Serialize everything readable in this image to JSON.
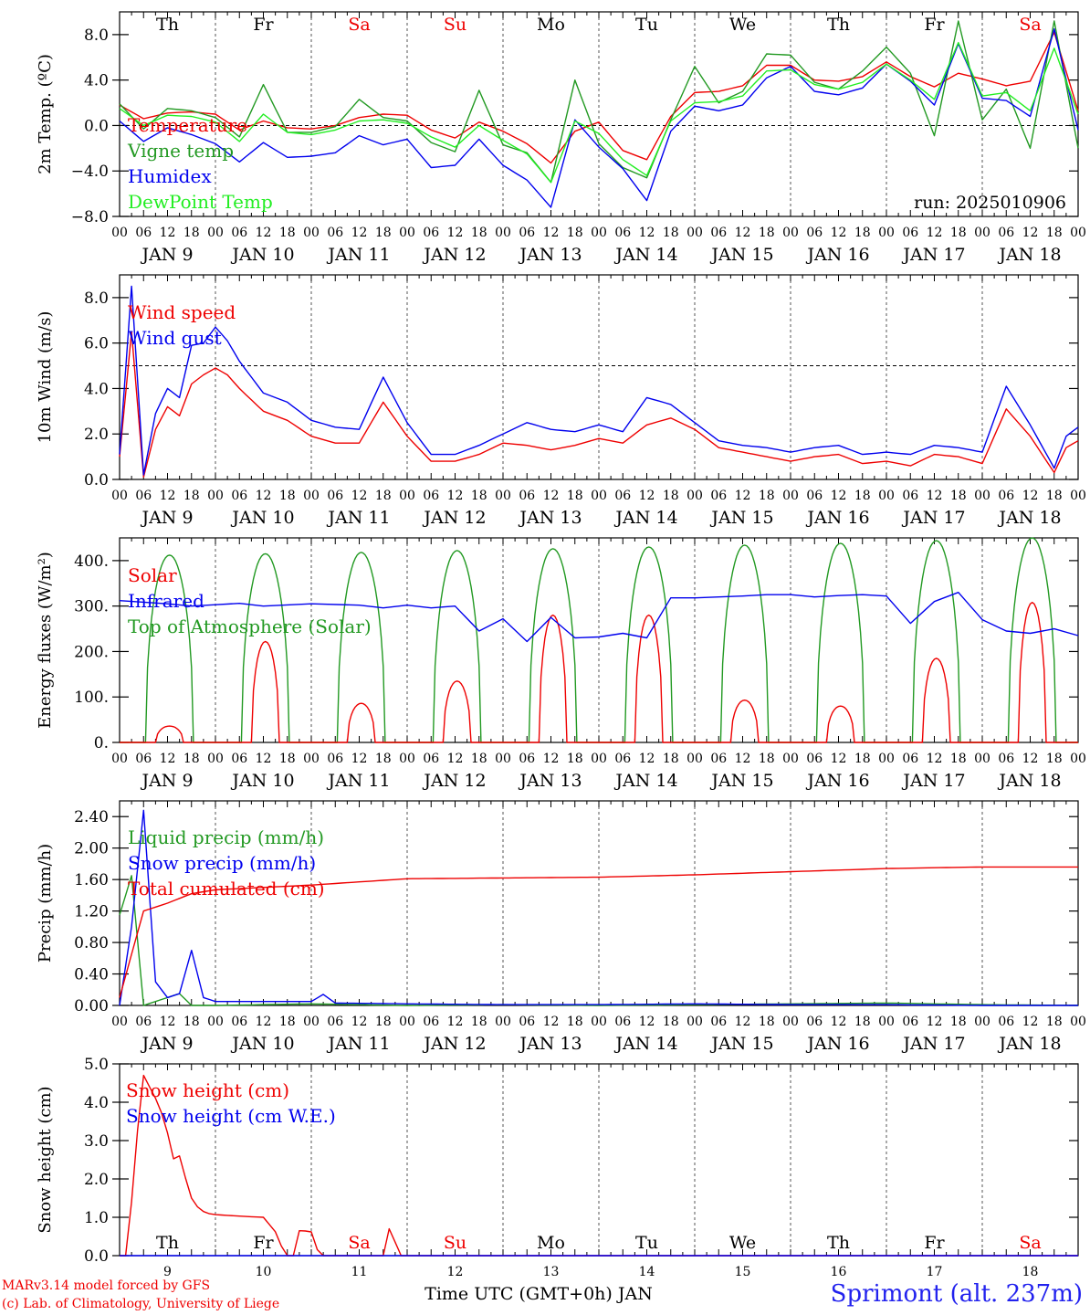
{
  "colors": {
    "red": "#ee0000",
    "green": "#229922",
    "blue": "#0000ee",
    "lime": "#22ee22",
    "black": "#000000"
  },
  "footer": {
    "credit1": "MARv3.14 model forced by GFS",
    "credit2": "(c) Lab. of Climatology, University of Liege",
    "station": "Sprimont (alt. 237m)",
    "xlabel": "Time UTC (GMT+0h) JAN"
  },
  "chart_data": [
    {
      "type": "line",
      "ylabel": "2m Temp. (ºC)",
      "ylim": [
        -8,
        10
      ],
      "yticks": [
        -8,
        -4,
        0,
        4,
        8
      ],
      "ytick_labels": [
        "−8.0",
        "−4.0",
        "0.0",
        "4.0",
        "8.0"
      ],
      "reference_line": 0,
      "annotation": "run: 2025010906",
      "day_labels": [
        "Th",
        "Fr",
        "Sa",
        "Su",
        "Mo",
        "Tu",
        "We",
        "Th",
        "Fr",
        "Sa"
      ],
      "day_label_colors": [
        "black",
        "black",
        "red",
        "red",
        "black",
        "black",
        "black",
        "black",
        "black",
        "red"
      ],
      "x_hours": [
        0,
        6,
        12,
        18,
        24,
        30,
        36,
        42,
        48,
        54,
        60,
        66,
        72,
        78,
        84,
        90,
        96,
        102,
        108,
        114,
        120,
        126,
        132,
        138,
        144,
        150,
        156,
        162,
        168,
        174,
        180,
        186,
        192,
        198,
        204,
        210,
        216,
        222,
        228,
        234,
        240
      ],
      "series": [
        {
          "name": "Temperature",
          "color": "red",
          "values": [
            1.8,
            0.6,
            1.1,
            1.2,
            1.0,
            -0.4,
            0.4,
            -0.2,
            -0.3,
            0.0,
            0.7,
            1.0,
            0.9,
            -0.4,
            -1.1,
            0.3,
            -0.5,
            -1.6,
            -3.3,
            -0.5,
            0.3,
            -2.2,
            -3.0,
            0.8,
            2.9,
            3.0,
            3.5,
            5.3,
            5.3,
            4.0,
            3.9,
            4.3,
            5.6,
            4.3,
            3.4,
            4.6,
            4.1,
            3.5,
            3.9,
            8.2,
            1.3
          ]
        },
        {
          "name": "Vigne temp",
          "color": "green",
          "values": [
            1.9,
            -0.3,
            1.5,
            1.3,
            0.7,
            -1.0,
            3.6,
            -0.6,
            -0.6,
            -0.1,
            2.3,
            0.7,
            0.4,
            -1.5,
            -2.3,
            3.1,
            -1.7,
            -2.4,
            -5.0,
            4.0,
            -1.6,
            -3.7,
            -4.6,
            0.5,
            5.2,
            2.0,
            3.0,
            6.3,
            6.2,
            3.8,
            3.2,
            4.8,
            6.9,
            4.6,
            -0.9,
            9.2,
            0.5,
            3.2,
            -2.0,
            9.2,
            -2.0
          ]
        },
        {
          "name": "Humidex",
          "color": "blue",
          "values": [
            0.4,
            -1.4,
            -0.2,
            -0.8,
            -1.6,
            -3.2,
            -1.5,
            -2.8,
            -2.7,
            -2.4,
            -0.9,
            -1.7,
            -1.2,
            -3.7,
            -3.5,
            -1.2,
            -3.5,
            -4.8,
            -7.2,
            0.5,
            -1.9,
            -3.8,
            -6.6,
            -0.5,
            1.7,
            1.3,
            1.8,
            4.2,
            5.2,
            3.0,
            2.7,
            3.3,
            5.4,
            3.9,
            1.8,
            7.2,
            2.4,
            2.2,
            0.8,
            8.5,
            -0.4
          ]
        },
        {
          "name": "DewPoint Temp",
          "color": "lime",
          "values": [
            1.5,
            0.0,
            0.9,
            0.8,
            0.3,
            -1.4,
            1.0,
            -0.6,
            -0.8,
            -0.4,
            0.4,
            0.5,
            0.2,
            -1.0,
            -1.9,
            0.0,
            -1.3,
            -2.5,
            -5.0,
            0.4,
            -0.7,
            -3.0,
            -4.4,
            0.4,
            2.0,
            2.1,
            2.6,
            4.8,
            4.9,
            3.6,
            3.2,
            3.8,
            5.4,
            4.0,
            2.3,
            7.3,
            2.6,
            2.9,
            1.3,
            6.8,
            1.0
          ]
        }
      ]
    },
    {
      "type": "line",
      "ylabel": "10m Wind (m/s)",
      "ylim": [
        0,
        9
      ],
      "yticks": [
        0,
        2,
        4,
        6,
        8
      ],
      "ytick_labels": [
        "0.0",
        "2.0",
        "4.0",
        "6.0",
        "8.0"
      ],
      "reference_line": 5,
      "x_hours": [
        0,
        3,
        6,
        9,
        12,
        15,
        18,
        21,
        24,
        27,
        30,
        36,
        42,
        48,
        54,
        60,
        66,
        72,
        78,
        84,
        90,
        96,
        102,
        108,
        114,
        120,
        126,
        132,
        138,
        144,
        150,
        156,
        162,
        168,
        174,
        180,
        186,
        192,
        198,
        204,
        210,
        216,
        222,
        228,
        234,
        237,
        240
      ],
      "series": [
        {
          "name": "Wind speed",
          "color": "red",
          "values": [
            1.0,
            6.5,
            0.1,
            2.2,
            3.2,
            2.8,
            4.2,
            4.6,
            4.9,
            4.6,
            4.0,
            3.0,
            2.6,
            1.9,
            1.6,
            1.6,
            3.4,
            1.9,
            0.8,
            0.8,
            1.1,
            1.6,
            1.5,
            1.3,
            1.5,
            1.8,
            1.6,
            2.4,
            2.7,
            2.2,
            1.4,
            1.2,
            1.0,
            0.8,
            1.0,
            1.1,
            0.7,
            0.8,
            0.6,
            1.1,
            1.0,
            0.7,
            3.1,
            1.9,
            0.3,
            1.4,
            1.7
          ]
        },
        {
          "name": "Wind gust",
          "color": "blue",
          "values": [
            1.1,
            8.5,
            0.2,
            2.9,
            4.0,
            3.6,
            5.9,
            6.0,
            6.7,
            6.1,
            5.2,
            3.8,
            3.4,
            2.6,
            2.3,
            2.2,
            4.5,
            2.5,
            1.1,
            1.1,
            1.5,
            2.0,
            2.5,
            2.2,
            2.1,
            2.4,
            2.1,
            3.6,
            3.3,
            2.5,
            1.7,
            1.5,
            1.4,
            1.2,
            1.4,
            1.5,
            1.1,
            1.2,
            1.1,
            1.5,
            1.4,
            1.2,
            4.1,
            2.4,
            0.5,
            1.9,
            2.3
          ]
        }
      ]
    },
    {
      "type": "line",
      "ylabel": "Energy fluxes (W/m²)",
      "ylim": [
        0,
        450
      ],
      "yticks": [
        0,
        100,
        200,
        300,
        400
      ],
      "ytick_labels": [
        "0.",
        "100.",
        "200.",
        "300.",
        "400."
      ],
      "day_peaks": {
        "Solar": [
          36,
          222,
          86,
          135,
          280,
          280,
          93,
          80,
          185,
          308
        ],
        "Top of Atmosphere (Solar)": [
          412,
          415,
          418,
          422,
          426,
          430,
          434,
          438,
          444,
          450
        ]
      },
      "x_hours": [
        0,
        12,
        18,
        24,
        30,
        36,
        48,
        60,
        66,
        72,
        78,
        84,
        90,
        96,
        102,
        108,
        114,
        120,
        126,
        132,
        138,
        144,
        150,
        156,
        162,
        168,
        174,
        180,
        186,
        192,
        198,
        204,
        210,
        216,
        222,
        228,
        234,
        240
      ],
      "series": [
        {
          "name": "Infrared",
          "color": "blue",
          "values": [
            312,
            305,
            300,
            303,
            306,
            300,
            305,
            302,
            296,
            302,
            296,
            300,
            245,
            272,
            222,
            275,
            230,
            232,
            240,
            230,
            318,
            318,
            320,
            322,
            325,
            325,
            320,
            323,
            325,
            322,
            262,
            310,
            330,
            270,
            245,
            240,
            250,
            235
          ]
        }
      ],
      "series_names": [
        "Solar",
        "Infrared",
        "Top of Atmosphere (Solar)"
      ]
    },
    {
      "type": "line",
      "ylabel": "Precip (mm/h)",
      "ylim": [
        0,
        2.6
      ],
      "yticks": [
        0,
        0.4,
        0.8,
        1.2,
        1.6,
        2.0,
        2.4
      ],
      "ytick_labels": [
        "0.00",
        "0.40",
        "0.80",
        "1.20",
        "1.60",
        "2.00",
        "2.40"
      ],
      "series": [
        {
          "name": "Liquid precip (mm/h)",
          "color": "green",
          "x_hours": [
            0,
            3,
            6,
            9,
            12,
            15,
            18,
            24,
            48,
            72,
            96,
            120,
            144,
            168,
            192,
            216,
            240
          ],
          "values": [
            1.15,
            1.65,
            0.0,
            0.05,
            0.1,
            0.15,
            0.0,
            0.0,
            0.02,
            0.0,
            0.01,
            0.0,
            0.01,
            0.02,
            0.03,
            0.01,
            0.0
          ]
        },
        {
          "name": "Snow precip (mm/h)",
          "color": "blue",
          "x_hours": [
            0,
            3,
            6,
            9,
            12,
            15,
            18,
            21,
            24,
            48,
            51,
            54,
            72,
            96,
            120,
            144,
            168,
            192,
            216,
            240
          ],
          "values": [
            0.0,
            1.0,
            2.48,
            0.3,
            0.1,
            0.15,
            0.7,
            0.1,
            0.05,
            0.05,
            0.14,
            0.03,
            0.02,
            0.01,
            0.01,
            0.02,
            0.01,
            0.01,
            0.0,
            0.0
          ]
        },
        {
          "name": "Total cumulated (cm)",
          "color": "red",
          "x_hours": [
            0,
            6,
            12,
            18,
            24,
            36,
            48,
            60,
            72,
            96,
            120,
            144,
            168,
            192,
            216,
            240
          ],
          "values": [
            0.1,
            1.2,
            1.3,
            1.42,
            1.47,
            1.5,
            1.53,
            1.57,
            1.61,
            1.62,
            1.63,
            1.66,
            1.7,
            1.74,
            1.76,
            1.76
          ]
        }
      ]
    },
    {
      "type": "line",
      "ylabel": "Snow height (cm)",
      "ylim": [
        0,
        5
      ],
      "yticks": [
        0,
        1,
        2,
        3,
        4,
        5
      ],
      "ytick_labels": [
        "0.0",
        "1.0",
        "2.0",
        "3.0",
        "4.0",
        "5.0"
      ],
      "day_labels": [
        "Th",
        "Fr",
        "Sa",
        "Su",
        "Mo",
        "Tu",
        "We",
        "Th",
        "Fr",
        "Sa"
      ],
      "day_label_colors": [
        "black",
        "black",
        "red",
        "red",
        "black",
        "black",
        "black",
        "black",
        "black",
        "red"
      ],
      "date_labels": [
        "9",
        "10",
        "11",
        "12",
        "13",
        "14",
        "15",
        "16",
        "17",
        "18"
      ],
      "series": [
        {
          "name": "Snow height (cm)",
          "color": "red",
          "x_hours": [
            0,
            2,
            4,
            6,
            8,
            10,
            12,
            14,
            15,
            16,
            18,
            20,
            22,
            24,
            30,
            36,
            40,
            41,
            44,
            45,
            46,
            48,
            50,
            52,
            66,
            67,
            68,
            70,
            74,
            240
          ],
          "values": [
            0,
            0,
            2.8,
            4.7,
            4.3,
            3.9,
            3.2,
            2.3,
            2.6,
            2.2,
            1.5,
            1.2,
            1.1,
            1.07,
            1.03,
            1.0,
            0.5,
            0.0,
            0.0,
            0.65,
            0.65,
            0.62,
            0.0,
            0.0,
            0.0,
            0.7,
            0.7,
            0.0,
            0.0,
            0.0
          ]
        },
        {
          "name": "Snow height (cm W.E.)",
          "color": "blue",
          "x_hours": [
            0,
            240
          ],
          "values": [
            0,
            0
          ]
        }
      ]
    }
  ],
  "x_axis": {
    "hour_labels": [
      "00",
      "06",
      "12",
      "18"
    ],
    "date_labels": [
      "JAN  9",
      "JAN 10",
      "JAN 11",
      "JAN 12",
      "JAN 13",
      "JAN 14",
      "JAN 15",
      "JAN 16",
      "JAN 17",
      "JAN 18"
    ]
  }
}
